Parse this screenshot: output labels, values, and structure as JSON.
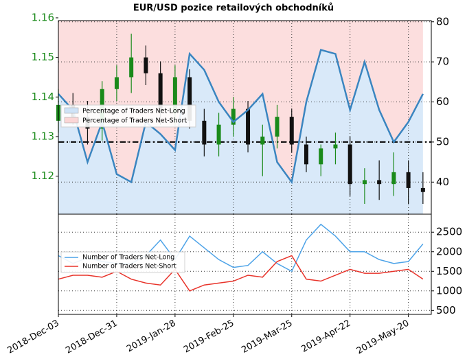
{
  "chart_data": [
    {
      "type": "candlestick",
      "title": "EUR/USD pozice retailových obchodníků",
      "x": [
        "2018-12-03",
        "2018-12-10",
        "2018-12-17",
        "2018-12-24",
        "2018-12-31",
        "2019-01-07",
        "2019-01-14",
        "2019-01-21",
        "2019-01-28",
        "2019-02-04",
        "2019-02-11",
        "2019-02-18",
        "2019-02-25",
        "2019-03-04",
        "2019-03-11",
        "2019-03-18",
        "2019-03-25",
        "2019-04-01",
        "2019-04-08",
        "2019-04-15",
        "2019-04-22",
        "2019-04-29",
        "2019-05-06",
        "2019-05-13",
        "2019-05-20",
        "2019-05-27"
      ],
      "open": [
        1.134,
        1.138,
        1.135,
        1.132,
        1.142,
        1.145,
        1.15,
        1.146,
        1.136,
        1.145,
        1.134,
        1.128,
        1.133,
        1.137,
        1.128,
        1.13,
        1.135,
        1.128,
        1.123,
        1.127,
        1.128,
        1.118,
        1.119,
        1.118,
        1.121,
        1.117
      ],
      "high": [
        1.142,
        1.141,
        1.139,
        1.144,
        1.148,
        1.156,
        1.153,
        1.149,
        1.148,
        1.147,
        1.137,
        1.136,
        1.14,
        1.139,
        1.133,
        1.138,
        1.137,
        1.13,
        1.128,
        1.131,
        1.13,
        1.122,
        1.124,
        1.126,
        1.124,
        1.121
      ],
      "low": [
        1.131,
        1.133,
        1.128,
        1.129,
        1.139,
        1.141,
        1.143,
        1.133,
        1.133,
        1.132,
        1.125,
        1.125,
        1.13,
        1.126,
        1.12,
        1.127,
        1.126,
        1.121,
        1.12,
        1.123,
        1.115,
        1.113,
        1.114,
        1.115,
        1.113,
        1.113
      ],
      "close": [
        1.138,
        1.135,
        1.132,
        1.142,
        1.145,
        1.15,
        1.146,
        1.136,
        1.145,
        1.134,
        1.128,
        1.133,
        1.137,
        1.128,
        1.13,
        1.135,
        1.128,
        1.123,
        1.127,
        1.128,
        1.118,
        1.119,
        1.118,
        1.121,
        1.117,
        1.116
      ],
      "up_color": "#1a8a1a",
      "down_color": "#111111",
      "ylim": [
        1.1104,
        1.1593
      ],
      "yticks": [
        1.12,
        1.13,
        1.14,
        1.15,
        1.16
      ],
      "ytick_color": "#1a8a1a",
      "y2lim": [
        32,
        80.3
      ],
      "y2ticks": [
        40,
        50,
        60,
        70,
        80
      ],
      "hline": 50,
      "series": [
        {
          "axis": "y2",
          "color": "#3a85c0",
          "values": [
            62,
            58,
            45,
            55,
            42,
            40,
            55,
            52,
            48,
            72,
            68,
            60,
            55,
            58,
            62,
            45,
            40,
            60,
            73,
            72,
            58,
            70,
            58,
            50,
            55,
            62
          ]
        }
      ],
      "areas": [
        {
          "name": "Percentage of Traders Net-Long",
          "color": "#cfe3f7"
        },
        {
          "name": "Percentage of Traders Net-Short",
          "color": "#fbd6d6"
        }
      ],
      "grid": true
    },
    {
      "type": "line",
      "x": [
        "2018-12-03",
        "2018-12-10",
        "2018-12-17",
        "2018-12-24",
        "2018-12-31",
        "2019-01-07",
        "2019-01-14",
        "2019-01-21",
        "2019-01-28",
        "2019-02-04",
        "2019-02-11",
        "2019-02-18",
        "2019-02-25",
        "2019-03-04",
        "2019-03-11",
        "2019-03-18",
        "2019-03-25",
        "2019-04-01",
        "2019-04-08",
        "2019-04-15",
        "2019-04-22",
        "2019-04-29",
        "2019-05-06",
        "2019-05-13",
        "2019-05-20",
        "2019-05-27"
      ],
      "xlim": [
        "2018-12-03",
        "2019-05-31"
      ],
      "xticks": [
        {
          "value": "2018-12-03",
          "label": "2018-Dec-03"
        },
        {
          "value": "2018-12-31",
          "label": "2018-Dec-31"
        },
        {
          "value": "2019-01-28",
          "label": "2019-Jan-28"
        },
        {
          "value": "2019-02-25",
          "label": "2019-Feb-25"
        },
        {
          "value": "2019-03-25",
          "label": "2019-Mar-25"
        },
        {
          "value": "2019-04-22",
          "label": "2019-Apr-22"
        },
        {
          "value": "2019-05-20",
          "label": "2019-May-20"
        }
      ],
      "ylim": [
        400,
        2960
      ],
      "yticks": [
        500,
        1000,
        1500,
        2000,
        2500
      ],
      "series": [
        {
          "name": "Number of Traders Net-Long",
          "color": "#4da3e8",
          "values": [
            1900,
            1700,
            1850,
            1750,
            1700,
            1700,
            1900,
            2300,
            1800,
            2400,
            2100,
            1800,
            1600,
            1650,
            2000,
            1700,
            1500,
            2300,
            2700,
            2400,
            2000,
            2000,
            1800,
            1700,
            1750,
            2200
          ]
        },
        {
          "name": "Number of Traders Net-Short",
          "color": "#e8332a",
          "values": [
            1300,
            1400,
            1400,
            1350,
            1500,
            1300,
            1200,
            1150,
            1550,
            1000,
            1150,
            1200,
            1250,
            1400,
            1350,
            1750,
            1900,
            1300,
            1250,
            1400,
            1550,
            1450,
            1450,
            1500,
            1550,
            1300
          ]
        }
      ],
      "grid": true
    }
  ]
}
